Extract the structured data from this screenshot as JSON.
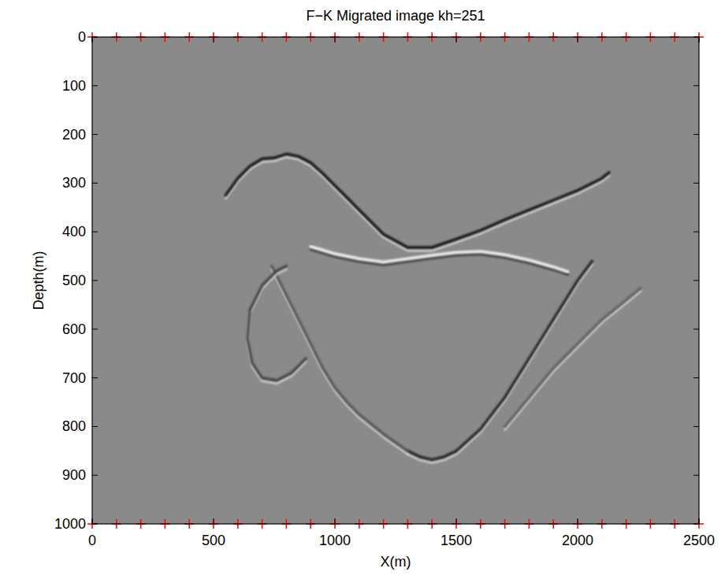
{
  "chart_data": {
    "type": "line",
    "title": "F−K Migrated image kh=251",
    "x_label": "X(m)",
    "y_label": "Depth(m)",
    "xlim": [
      0,
      2500
    ],
    "ylim": [
      1000,
      0
    ],
    "xticks": [
      0,
      500,
      1000,
      1500,
      2000,
      2500
    ],
    "yticks": [
      0,
      100,
      200,
      300,
      400,
      500,
      600,
      700,
      800,
      900,
      1000
    ],
    "grid": false,
    "series": [
      {
        "type": "line",
        "color": "#1e1e1e",
        "line_style": "solid",
        "x": [
          550,
          600,
          650,
          700,
          750,
          800,
          850,
          900,
          950,
          1000,
          1100,
          1200,
          1300,
          1400,
          1500,
          1600,
          1700,
          1800,
          1900,
          2000,
          2100,
          2130
        ],
        "values": [
          325,
          290,
          265,
          250,
          248,
          240,
          245,
          258,
          280,
          305,
          355,
          405,
          432,
          432,
          415,
          397,
          375,
          355,
          335,
          315,
          290,
          278
        ]
      },
      {
        "type": "line",
        "color": "#ececec",
        "line_style": "solid",
        "x": [
          900,
          1000,
          1100,
          1200,
          1300,
          1400,
          1500,
          1600,
          1700,
          1800,
          1900,
          1960
        ],
        "values": [
          430,
          445,
          455,
          462,
          455,
          448,
          442,
          440,
          447,
          458,
          472,
          482
        ]
      },
      {
        "type": "line",
        "color": "#2a2a2a",
        "line_style": "solid",
        "x": [
          1300,
          1350,
          1400,
          1450,
          1500,
          1600,
          1700,
          1800,
          1900,
          2000,
          2060
        ],
        "values": [
          850,
          862,
          868,
          862,
          850,
          805,
          740,
          660,
          580,
          500,
          460
        ]
      },
      {
        "type": "line",
        "color": "#5a5a5a",
        "line_style": "solid",
        "x": [
          740,
          800,
          850,
          900,
          950,
          1000,
          1050,
          1100,
          1200,
          1300
        ],
        "values": [
          470,
          530,
          580,
          630,
          680,
          720,
          750,
          775,
          815,
          850
        ]
      },
      {
        "type": "line",
        "color": "#4a4a4a",
        "line_style": "solid",
        "x": [
          880,
          820,
          760,
          700,
          660,
          640,
          650,
          700,
          760,
          800
        ],
        "values": [
          660,
          690,
          705,
          700,
          670,
          620,
          560,
          510,
          480,
          470
        ]
      },
      {
        "type": "line",
        "color": "#666666",
        "line_style": "solid",
        "x": [
          1700,
          1800,
          1900,
          2000,
          2100,
          2200,
          2260
        ],
        "values": [
          800,
          740,
          680,
          630,
          580,
          540,
          515
        ]
      },
      {
        "type": "scatter",
        "color": "#ff0000",
        "marker": "plus",
        "x": [
          0,
          100,
          200,
          300,
          400,
          500,
          600,
          700,
          800,
          900,
          1000,
          1100,
          1200,
          1300,
          1400,
          1500,
          1600,
          1700,
          1800,
          1900,
          2000,
          2100,
          2200,
          2300,
          2400,
          2500
        ],
        "values": [
          0,
          0,
          0,
          0,
          0,
          0,
          0,
          0,
          0,
          0,
          0,
          0,
          0,
          0,
          0,
          0,
          0,
          0,
          0,
          0,
          0,
          0,
          0,
          0,
          0,
          0
        ]
      },
      {
        "type": "scatter",
        "color": "#ff0000",
        "marker": "plus",
        "x": [
          0,
          100,
          200,
          300,
          400,
          500,
          600,
          700,
          800,
          900,
          1000,
          1100,
          1200,
          1300,
          1400,
          1500,
          1600,
          1700,
          1800,
          1900,
          2000,
          2100,
          2200,
          2300,
          2400,
          2500
        ],
        "values": [
          1000,
          1000,
          1000,
          1000,
          1000,
          1000,
          1000,
          1000,
          1000,
          1000,
          1000,
          1000,
          1000,
          1000,
          1000,
          1000,
          1000,
          1000,
          1000,
          1000,
          1000,
          1000,
          1000,
          1000,
          1000,
          1000
        ]
      }
    ]
  }
}
